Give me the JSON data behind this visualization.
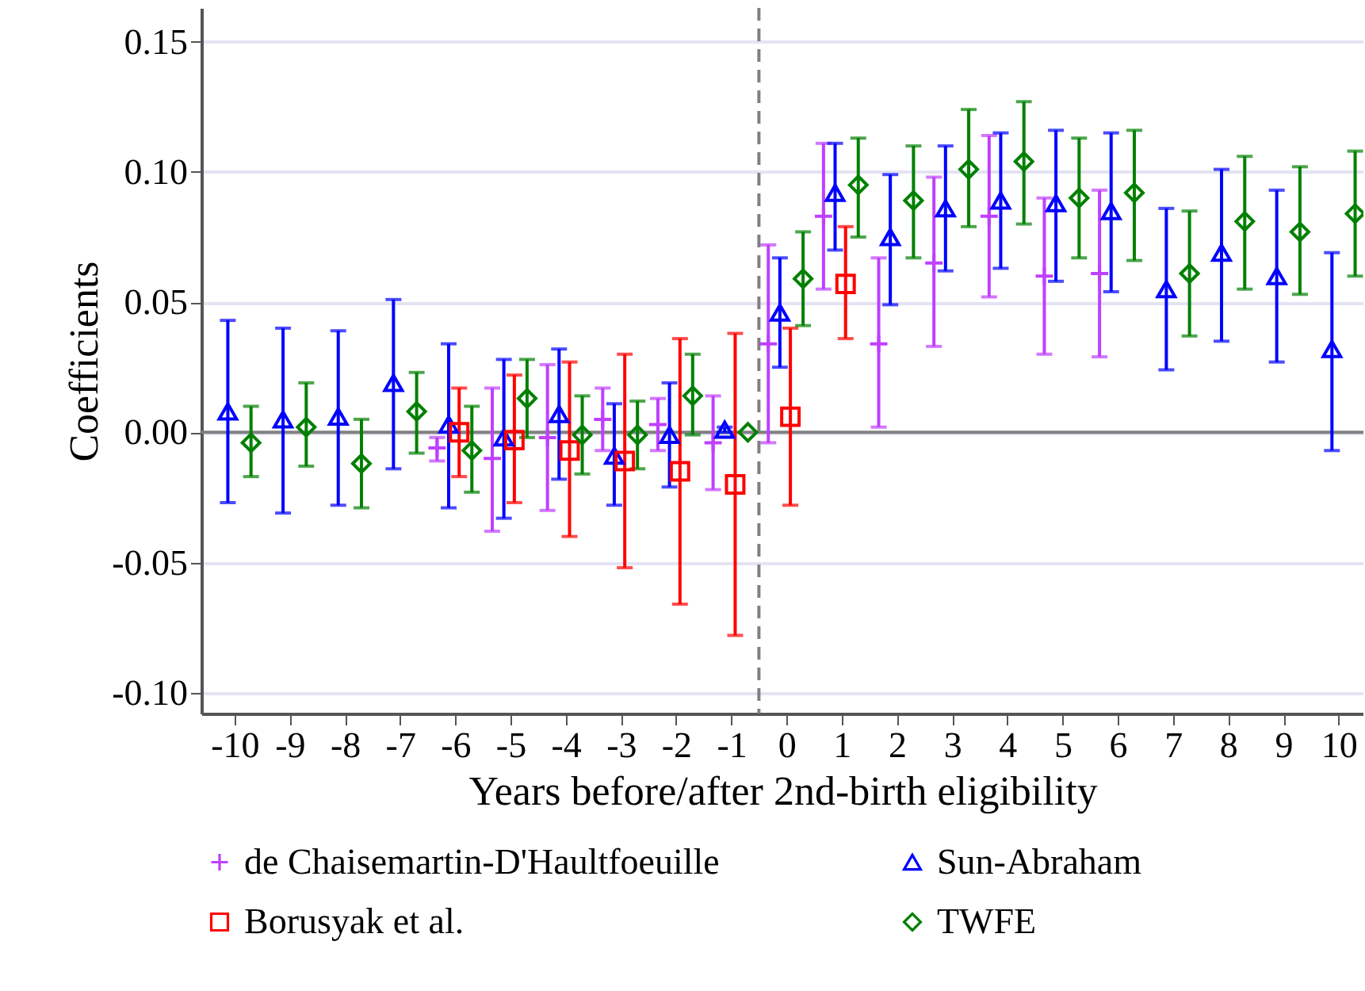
{
  "chart_data": {
    "type": "scatter",
    "xlabel": "Years before/after 2nd-birth eligibility",
    "ylabel": "Coefficients",
    "xlim": [
      -10.6,
      10.45
    ],
    "xticks": [
      -10,
      -9,
      -8,
      -7,
      -6,
      -5,
      -4,
      -3,
      -2,
      -1,
      0,
      1,
      2,
      3,
      4,
      5,
      6,
      7,
      8,
      9,
      10
    ],
    "ylim": [
      -0.108,
      0.163
    ],
    "yticks": [
      {
        "value": -0.1,
        "label": "-0.10"
      },
      {
        "value": -0.05,
        "label": "-0.05"
      },
      {
        "value": 0,
        "label": "0.00"
      },
      {
        "value": 0.05,
        "label": "0.05"
      },
      {
        "value": 0.1,
        "label": "0.10"
      },
      {
        "value": 0.15,
        "label": "0.15"
      }
    ],
    "grid": "y",
    "legend": "bottom",
    "ref_lines": [
      {
        "axis": "y",
        "value": 0,
        "color": "#808080",
        "line_style": "solid"
      },
      {
        "axis": "x",
        "value": -0.5,
        "color": "#808080",
        "line_style": "dashed"
      }
    ],
    "series": [
      {
        "name": "de Chaisemartin-D'Haultfoeuille",
        "color": "#bf3fff",
        "marker": "cross",
        "x": [
          -6.33,
          -5.33,
          -4.33,
          -3.33,
          -2.33,
          -1.33,
          -0.33,
          0.67,
          1.67,
          2.67,
          3.67,
          4.67,
          5.67
        ],
        "values": [
          -0.006,
          -0.01,
          -0.002,
          0.005,
          0.003,
          -0.004,
          0.034,
          0.083,
          0.034,
          0.065,
          0.083,
          0.06,
          0.061
        ],
        "errors": [
          [
            -0.011,
            -0.002
          ],
          [
            -0.038,
            0.017
          ],
          [
            -0.03,
            0.026
          ],
          [
            -0.007,
            0.017
          ],
          [
            -0.007,
            0.013
          ],
          [
            -0.022,
            0.014
          ],
          [
            -0.004,
            0.072
          ],
          [
            0.055,
            0.111
          ],
          [
            0.002,
            0.067
          ],
          [
            0.033,
            0.098
          ],
          [
            0.052,
            0.114
          ],
          [
            0.03,
            0.09
          ],
          [
            0.029,
            0.093
          ]
        ]
      },
      {
        "name": "Sun-Abraham",
        "color": "#0000ff",
        "marker": "triangle",
        "x": [
          -10.12,
          -9.12,
          -8.12,
          -7.12,
          -6.12,
          -5.12,
          -4.12,
          -3.12,
          -2.12,
          -1.12,
          -0.12,
          0.88,
          1.88,
          2.88,
          3.88,
          4.88,
          5.88,
          6.88,
          7.88,
          8.88,
          9.88
        ],
        "values": [
          0.008,
          0.005,
          0.006,
          0.019,
          0.003,
          -0.002,
          0.007,
          -0.009,
          -0.001,
          0.001,
          0.046,
          0.092,
          0.075,
          0.086,
          0.089,
          0.088,
          0.085,
          0.055,
          0.069,
          0.06,
          0.032
        ],
        "errors": [
          [
            -0.027,
            0.043
          ],
          [
            -0.031,
            0.04
          ],
          [
            -0.028,
            0.039
          ],
          [
            -0.014,
            0.051
          ],
          [
            -0.029,
            0.034
          ],
          [
            -0.033,
            0.028
          ],
          [
            -0.018,
            0.032
          ],
          [
            -0.028,
            0.011
          ],
          [
            -0.021,
            0.019
          ],
          [
            0.0,
            0.002
          ],
          [
            0.025,
            0.067
          ],
          [
            0.07,
            0.111
          ],
          [
            0.049,
            0.099
          ],
          [
            0.062,
            0.11
          ],
          [
            0.063,
            0.115
          ],
          [
            0.058,
            0.116
          ],
          [
            0.054,
            0.115
          ],
          [
            0.024,
            0.086
          ],
          [
            0.035,
            0.101
          ],
          [
            0.027,
            0.093
          ],
          [
            -0.007,
            0.069
          ]
        ]
      },
      {
        "name": "Borusyak et al.",
        "color": "#ff0000",
        "marker": "square",
        "x": [
          -5.93,
          -4.93,
          -3.93,
          -2.93,
          -1.93,
          -0.93,
          0.07,
          1.07
        ],
        "values": [
          0.0,
          -0.003,
          -0.007,
          -0.011,
          -0.015,
          -0.02,
          0.006,
          0.057
        ],
        "errors": [
          [
            -0.017,
            0.017
          ],
          [
            -0.027,
            0.022
          ],
          [
            -0.04,
            0.027
          ],
          [
            -0.052,
            0.03
          ],
          [
            -0.066,
            0.036
          ],
          [
            -0.078,
            0.038
          ],
          [
            -0.028,
            0.04
          ],
          [
            0.036,
            0.079
          ]
        ]
      },
      {
        "name": "TWFE",
        "color": "#008000",
        "marker": "diamond",
        "x": [
          -9.7,
          -8.7,
          -7.7,
          -6.7,
          -5.7,
          -4.7,
          -3.7,
          -2.7,
          -1.7,
          -0.7,
          0.3,
          1.3,
          2.3,
          3.3,
          4.3,
          5.3,
          6.3,
          7.3,
          8.3,
          9.3,
          10.3
        ],
        "values": [
          -0.004,
          0.002,
          -0.012,
          0.008,
          -0.007,
          0.013,
          -0.001,
          -0.001,
          0.014,
          0.0,
          0.059,
          0.095,
          0.089,
          0.101,
          0.104,
          0.09,
          0.092,
          0.061,
          0.081,
          0.077,
          0.084
        ],
        "errors": [
          [
            -0.017,
            0.01
          ],
          [
            -0.013,
            0.019
          ],
          [
            -0.029,
            0.005
          ],
          [
            -0.008,
            0.023
          ],
          [
            -0.023,
            0.01
          ],
          [
            -0.002,
            0.028
          ],
          [
            -0.016,
            0.014
          ],
          [
            -0.014,
            0.012
          ],
          [
            -0.001,
            0.03
          ],
          null,
          [
            0.041,
            0.077
          ],
          [
            0.075,
            0.113
          ],
          [
            0.067,
            0.11
          ],
          [
            0.079,
            0.124
          ],
          [
            0.08,
            0.127
          ],
          [
            0.067,
            0.113
          ],
          [
            0.066,
            0.116
          ],
          [
            0.037,
            0.085
          ],
          [
            0.055,
            0.106
          ],
          [
            0.053,
            0.102
          ],
          [
            0.06,
            0.108
          ]
        ]
      }
    ]
  }
}
